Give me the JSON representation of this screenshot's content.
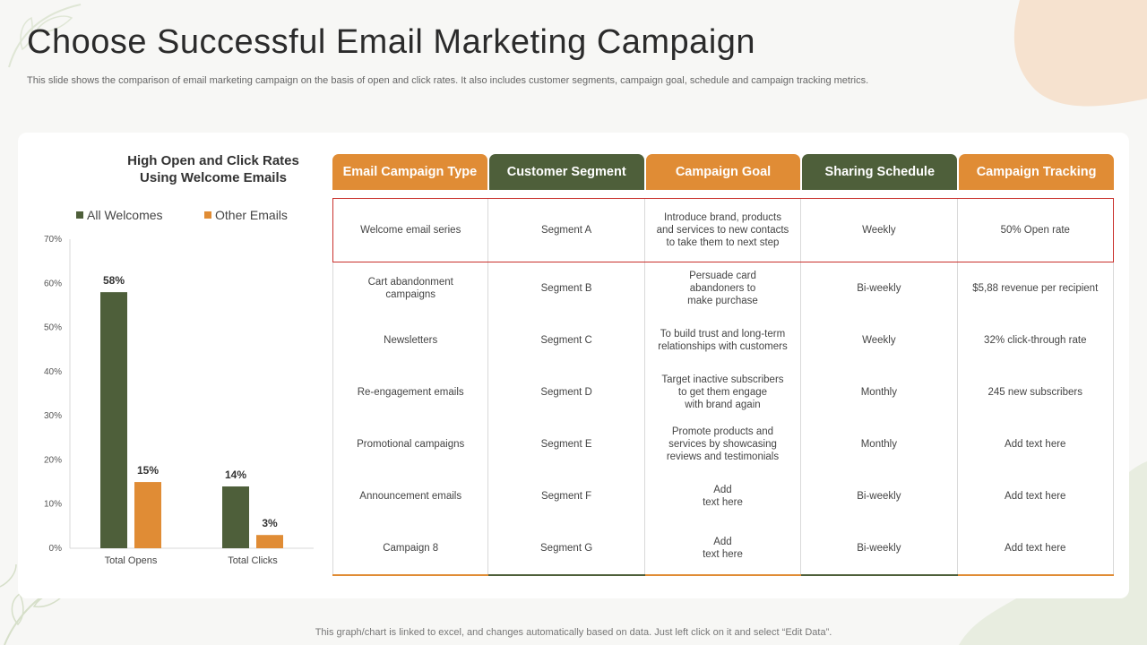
{
  "slide": {
    "title": "Choose Successful Email Marketing Campaign",
    "subtitle": "This slide shows the comparison of email marketing campaign on the basis of open and click rates. It also includes customer segments, campaign goal, schedule and campaign tracking metrics.",
    "footer": "This graph/chart is linked to excel,  and changes automatically based on data. Just left click on it and select “Edit Data”."
  },
  "chart_data": {
    "type": "bar",
    "title": "High Open and Click Rates Using Welcome Emails",
    "title_lines": [
      "High Open and Click Rates",
      "Using Welcome Emails"
    ],
    "categories": [
      "Total Opens",
      "Total Clicks"
    ],
    "series": [
      {
        "name": "All Welcomes",
        "values": [
          58,
          14
        ],
        "labels": [
          "58%",
          "14%"
        ],
        "color": "#4e5f3a"
      },
      {
        "name": "Other Emails",
        "values": [
          15,
          3
        ],
        "labels": [
          "15%",
          "3%"
        ],
        "color": "#e08c35"
      }
    ],
    "y_ticks": [
      "0%",
      "10%",
      "20%",
      "30%",
      "40%",
      "50%",
      "60%",
      "70%"
    ],
    "ylim": [
      0,
      70
    ],
    "legend_position": "top",
    "grid": false
  },
  "table": {
    "headers": [
      {
        "label": "Email Campaign Type",
        "color": "#e08c35"
      },
      {
        "label": "Customer Segment",
        "color": "#4e5f3a"
      },
      {
        "label": "Campaign Goal",
        "color": "#e08c35"
      },
      {
        "label": "Sharing Schedule",
        "color": "#4e5f3a"
      },
      {
        "label": "Campaign Tracking",
        "color": "#e08c35"
      }
    ],
    "rows": [
      [
        "Welcome email series",
        "Segment A",
        "Introduce brand, products\nand services to new contacts\nto take them to next step",
        "Weekly",
        "50% Open rate"
      ],
      [
        "Cart abandonment\ncampaigns",
        "Segment B",
        "Persuade card\nabandoners to\nmake purchase",
        "Bi-weekly",
        "$5,88 revenue per recipient"
      ],
      [
        "Newsletters",
        "Segment C",
        "To build trust and long-term\nrelationships with customers",
        "Weekly",
        "32% click-through rate"
      ],
      [
        "Re-engagement emails",
        "Segment D",
        "Target inactive subscribers\nto get them engage\nwith brand again",
        "Monthly",
        "245 new subscribers"
      ],
      [
        "Promotional campaigns",
        "Segment E",
        "Promote products and\nservices by showcasing\nreviews and testimonials",
        "Monthly",
        "Add text here"
      ],
      [
        "Announcement emails",
        "Segment F",
        "Add\ntext here",
        "Bi-weekly",
        "Add text here"
      ],
      [
        "Campaign 8",
        "Segment G",
        "Add\ntext here",
        "Bi-weekly",
        "Add text here"
      ]
    ],
    "highlight_color": "#c9302c"
  }
}
